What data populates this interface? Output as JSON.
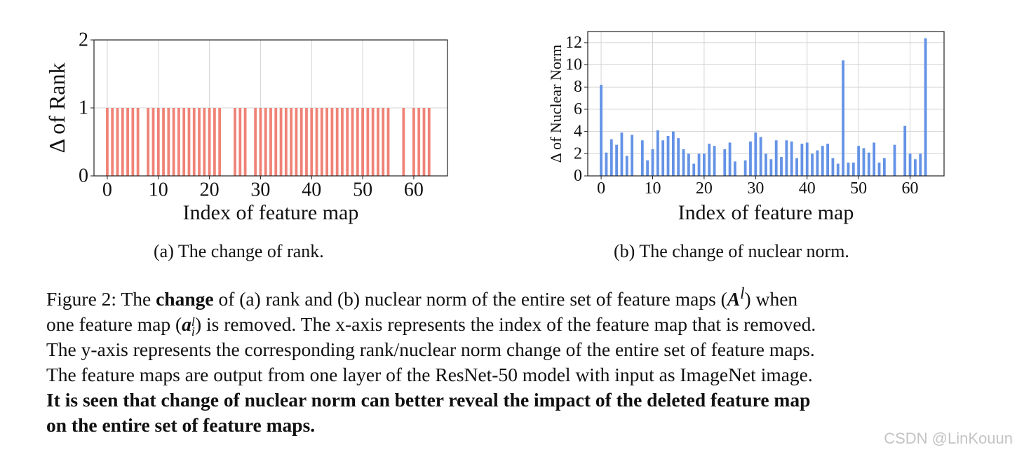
{
  "chart_data": [
    {
      "type": "bar",
      "ylabel": "Δ of Rank",
      "xlabel": "Index of feature map",
      "ylim": [
        0,
        2
      ],
      "xlim": [
        -2.6,
        66.6
      ],
      "yticks": [
        0,
        1,
        2
      ],
      "xticks": [
        0,
        10,
        20,
        30,
        40,
        50,
        60
      ],
      "grid": true,
      "color": "#f08276",
      "x": [
        0,
        1,
        2,
        3,
        4,
        5,
        6,
        7,
        8,
        9,
        10,
        11,
        12,
        13,
        14,
        15,
        16,
        17,
        18,
        19,
        20,
        21,
        22,
        23,
        24,
        25,
        26,
        27,
        28,
        29,
        30,
        31,
        32,
        33,
        34,
        35,
        36,
        37,
        38,
        39,
        40,
        41,
        42,
        43,
        44,
        45,
        46,
        47,
        48,
        49,
        50,
        51,
        52,
        53,
        54,
        55,
        56,
        57,
        58,
        59,
        60,
        61,
        62,
        63
      ],
      "values": [
        1,
        1,
        1,
        1,
        1,
        1,
        1,
        0,
        1,
        1,
        1,
        1,
        1,
        1,
        1,
        1,
        1,
        1,
        1,
        1,
        1,
        1,
        1,
        0,
        0,
        1,
        1,
        1,
        0,
        1,
        1,
        1,
        1,
        1,
        1,
        1,
        1,
        1,
        1,
        1,
        1,
        1,
        1,
        1,
        1,
        1,
        1,
        1,
        1,
        1,
        1,
        1,
        1,
        1,
        1,
        1,
        0,
        0,
        1,
        0,
        1,
        1,
        1,
        1
      ]
    },
    {
      "type": "bar",
      "ylabel": "Δ of Nuclear Norm",
      "xlabel": "Index of feature map",
      "ylim": [
        0,
        13
      ],
      "xlim": [
        -2.6,
        66.6
      ],
      "yticks": [
        0,
        2,
        4,
        6,
        8,
        10,
        12
      ],
      "xticks": [
        0,
        10,
        20,
        30,
        40,
        50,
        60
      ],
      "grid": true,
      "color": "#6493e6",
      "x": [
        0,
        1,
        2,
        3,
        4,
        5,
        6,
        7,
        8,
        9,
        10,
        11,
        12,
        13,
        14,
        15,
        16,
        17,
        18,
        19,
        20,
        21,
        22,
        23,
        24,
        25,
        26,
        27,
        28,
        29,
        30,
        31,
        32,
        33,
        34,
        35,
        36,
        37,
        38,
        39,
        40,
        41,
        42,
        43,
        44,
        45,
        46,
        47,
        48,
        49,
        50,
        51,
        52,
        53,
        54,
        55,
        56,
        57,
        58,
        59,
        60,
        61,
        62,
        63
      ],
      "values": [
        8.2,
        2.1,
        3.3,
        2.8,
        3.9,
        1.8,
        3.7,
        0,
        3.2,
        1.4,
        2.4,
        4.1,
        3.2,
        3.6,
        4.0,
        3.4,
        2.4,
        2.0,
        1.1,
        2.0,
        2.0,
        2.9,
        2.7,
        0,
        2.4,
        3.0,
        1.3,
        0,
        1.4,
        3.1,
        3.9,
        3.5,
        2.0,
        1.5,
        3.2,
        1.7,
        3.2,
        3.1,
        1.6,
        2.9,
        3.0,
        2.0,
        2.3,
        2.7,
        2.9,
        1.6,
        1.1,
        10.4,
        1.2,
        1.2,
        2.7,
        2.5,
        2.1,
        3.0,
        1.2,
        1.6,
        0,
        2.8,
        0,
        4.5,
        2.0,
        1.5,
        2.0,
        12.4
      ]
    }
  ],
  "subcaptions": {
    "a": "(a) The change of rank.",
    "b": "(b) The change of nuclear norm."
  },
  "caption": {
    "line1_pre": "Figure 2: The ",
    "line1_bold": "change",
    "line1_post": " of (a) rank and (b) nuclear norm of the entire set of feature maps (",
    "line1_math": "A",
    "line1_sup": "l",
    "line1_end": ") when",
    "line2_pre": "one feature map (",
    "line2_math": "a",
    "line2_sup": "l",
    "line2_sub": "i",
    "line2_post": ") is removed. The x-axis represents the index of the feature map that is removed.",
    "line3": "The y-axis represents the corresponding rank/nuclear norm change of the entire set of feature maps.",
    "line4": "The feature maps are output from one layer of the ResNet-50 model with input as ImageNet image.",
    "line5": "It is seen that change of nuclear norm can better reveal the impact of the deleted feature map",
    "line6": "on the entire set of feature maps."
  },
  "watermark": "CSDN @LinKouun"
}
